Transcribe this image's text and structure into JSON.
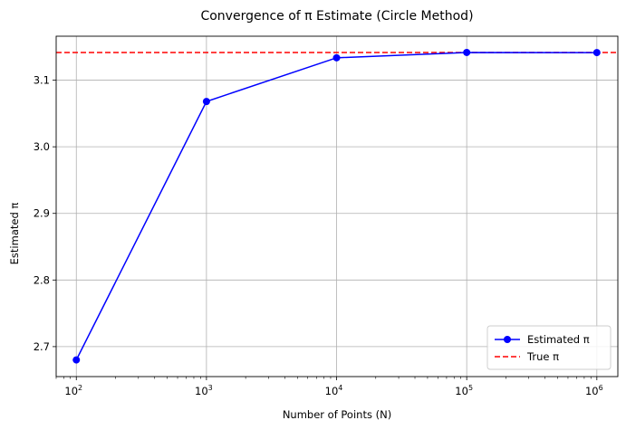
{
  "chart_data": {
    "type": "line",
    "title": "Convergence of π Estimate (Circle Method)",
    "xlabel": "Number of Points (N)",
    "ylabel": "Estimated π",
    "x_scale": "log",
    "xlim": [
      70,
      1450000
    ],
    "ylim": [
      2.655,
      3.166
    ],
    "x_ticks": [
      {
        "value": 100,
        "base": "10",
        "exp": "2"
      },
      {
        "value": 1000,
        "base": "10",
        "exp": "3"
      },
      {
        "value": 10000,
        "base": "10",
        "exp": "4"
      },
      {
        "value": 100000,
        "base": "10",
        "exp": "5"
      },
      {
        "value": 1000000,
        "base": "10",
        "exp": "6"
      }
    ],
    "y_ticks": [
      {
        "value": 2.7,
        "label": "2.7"
      },
      {
        "value": 2.8,
        "label": "2.8"
      },
      {
        "value": 2.9,
        "label": "2.9"
      },
      {
        "value": 3.0,
        "label": "3.0"
      },
      {
        "value": 3.1,
        "label": "3.1"
      }
    ],
    "grid": true,
    "legend_position": "bottom-right",
    "series": [
      {
        "name": "Estimated π",
        "color": "#0000ff",
        "marker": "circle",
        "x": [
          100,
          1000,
          10000,
          100000,
          1000000
        ],
        "y": [
          2.68,
          3.068,
          3.1336,
          3.1416,
          3.1414
        ]
      }
    ],
    "reference_lines": [
      {
        "name": "True π",
        "y": 3.14159,
        "color": "#ff0000",
        "style": "dashed"
      }
    ]
  }
}
